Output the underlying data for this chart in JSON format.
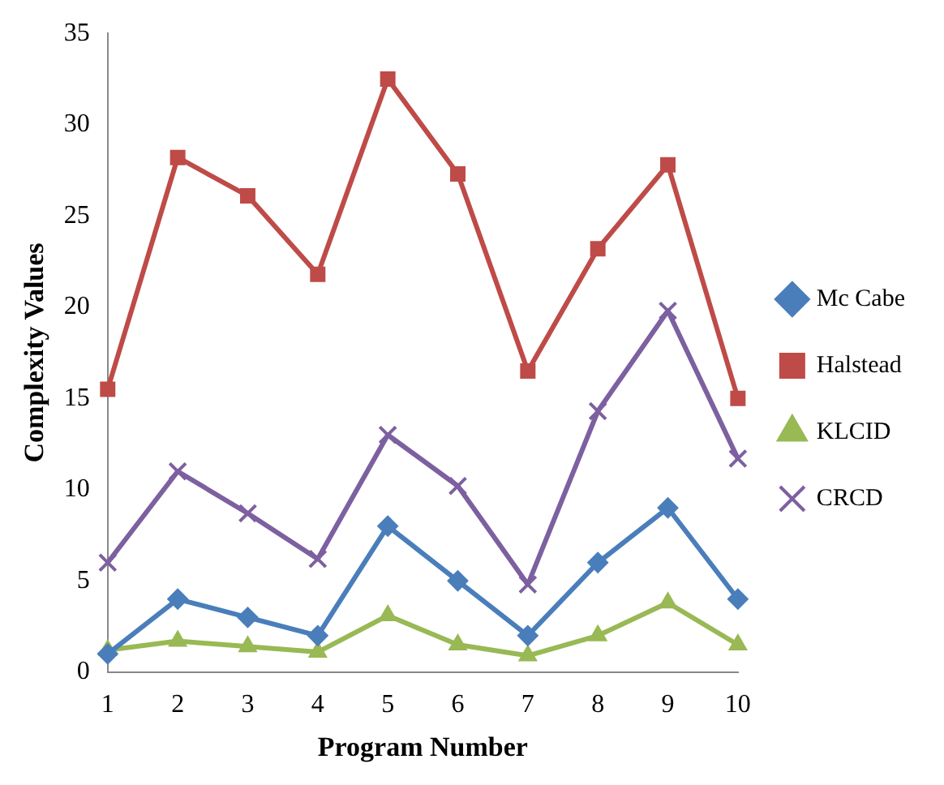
{
  "chart_data": {
    "type": "line",
    "xlabel": "Program Number",
    "ylabel": "Complexity Values",
    "categories": [
      "1",
      "2",
      "3",
      "4",
      "5",
      "6",
      "7",
      "8",
      "9",
      "10"
    ],
    "series": [
      {
        "name": "Mc Cabe",
        "color": "#4a7ebb",
        "marker": "diamond",
        "values": [
          1,
          4,
          3,
          2,
          8,
          5,
          2,
          6,
          9,
          4
        ]
      },
      {
        "name": "Halstead",
        "color": "#be4b48",
        "marker": "square",
        "values": [
          15.5,
          28.2,
          26.1,
          21.8,
          32.5,
          27.3,
          16.5,
          23.2,
          27.8,
          15.0
        ]
      },
      {
        "name": "KLCID",
        "color": "#98b954",
        "marker": "triangle",
        "values": [
          1.2,
          1.7,
          1.4,
          1.1,
          3.1,
          1.5,
          0.9,
          2.0,
          3.8,
          1.5
        ]
      },
      {
        "name": "CRCD",
        "color": "#7d60a0",
        "marker": "cross",
        "values": [
          6.0,
          11.0,
          8.7,
          6.2,
          13.0,
          10.2,
          4.8,
          14.3,
          19.8,
          11.7
        ]
      }
    ],
    "ylim": [
      0,
      35
    ],
    "yticks": [
      0,
      5,
      10,
      15,
      20,
      25,
      30,
      35
    ],
    "grid": false,
    "legend": "right"
  }
}
